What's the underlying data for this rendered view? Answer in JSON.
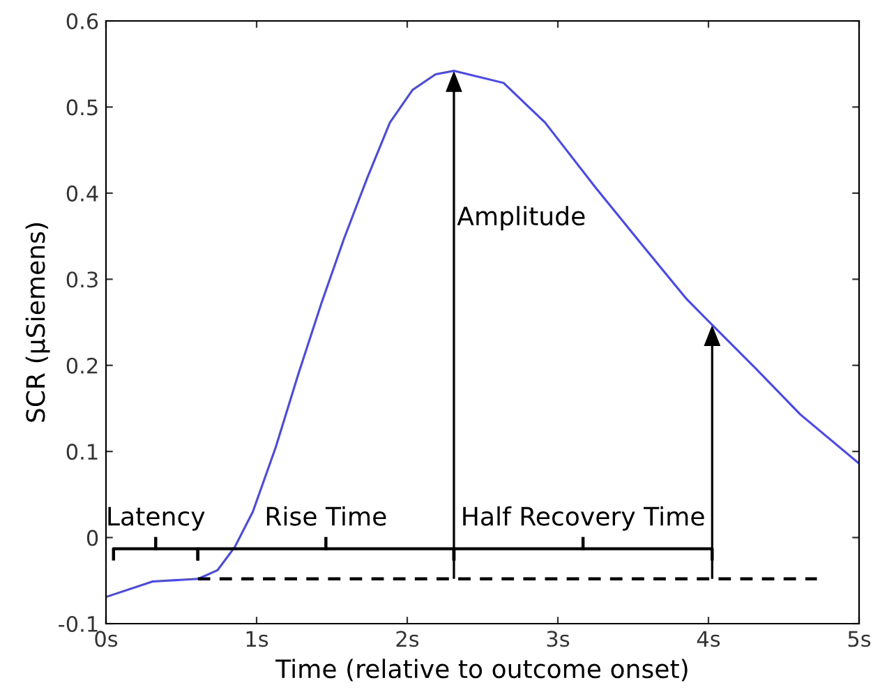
{
  "chart_data": {
    "type": "line",
    "xlabel": "Time (relative to outcome onset)",
    "ylabel": "SCR (µSiemens)",
    "xlim": [
      0,
      5
    ],
    "xticks": [
      {
        "value": 0,
        "label": "0s"
      },
      {
        "value": 1,
        "label": "1s"
      },
      {
        "value": 2,
        "label": "2s"
      },
      {
        "value": 3,
        "label": "3s"
      },
      {
        "value": 4,
        "label": "4s"
      },
      {
        "value": 5,
        "label": "5s"
      }
    ],
    "ylim": [
      -0.1,
      0.6
    ],
    "yticks": [
      -0.1,
      0,
      0.1,
      0.2,
      0.3,
      0.4,
      0.5,
      0.6
    ],
    "grid": false,
    "legend": false,
    "series": [
      {
        "color": "#4646ff",
        "x": [
          0,
          0.31,
          0.61,
          0.74,
          0.855,
          0.975,
          1.127,
          1.279,
          1.43,
          1.58,
          1.733,
          1.885,
          2.036,
          2.188,
          2.31,
          2.64,
          2.915,
          3.248,
          3.55,
          3.855,
          4.036,
          4.31,
          4.61,
          5.0
        ],
        "values": [
          -0.069,
          -0.051,
          -0.048,
          -0.038,
          -0.011,
          0.03,
          0.105,
          0.191,
          0.272,
          0.347,
          0.417,
          0.482,
          0.52,
          0.538,
          0.542,
          0.528,
          0.482,
          0.407,
          0.342,
          0.277,
          0.245,
          0.197,
          0.143,
          0.086
        ]
      },
      {
        "color": "#000000",
        "line_style": "dashed",
        "x": [
          0.61,
          4.72
        ],
        "values": [
          -0.048,
          -0.048
        ]
      }
    ],
    "annotations": [
      "Latency",
      "Rise Time",
      "Half Recovery Time",
      "Amplitude"
    ]
  }
}
